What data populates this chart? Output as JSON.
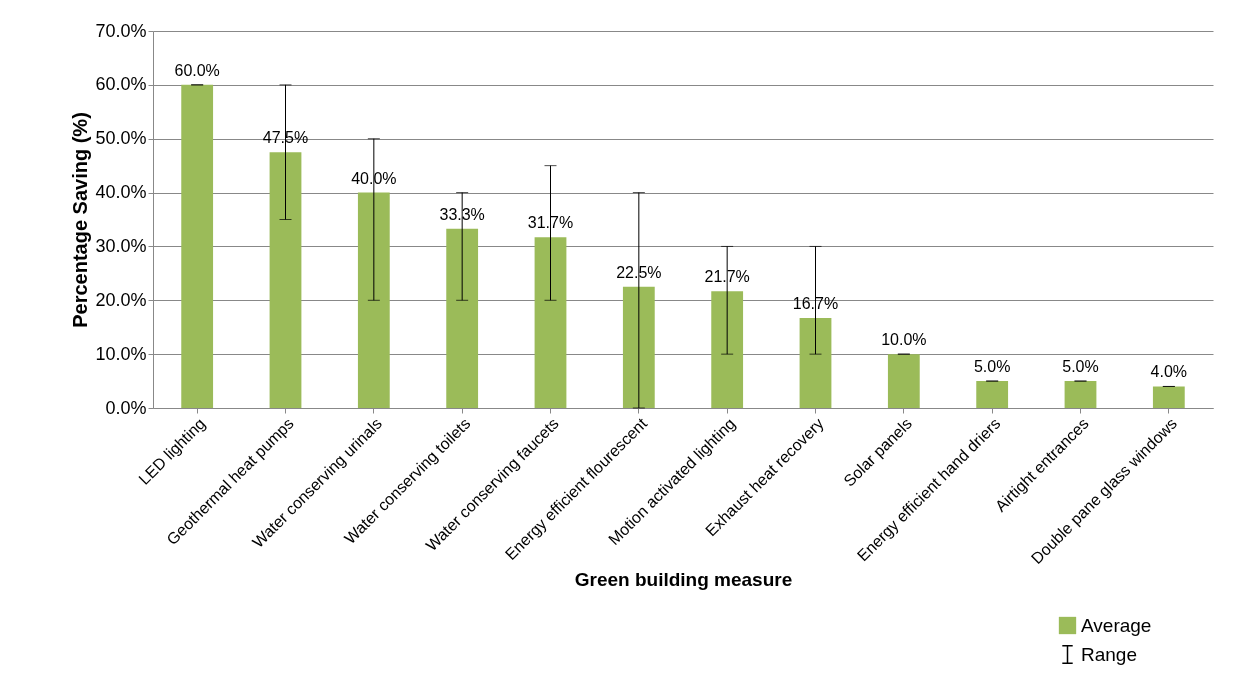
{
  "chart_data": {
    "type": "bar",
    "xlabel": "Green building measure",
    "ylabel": "Percentage Saving (%)",
    "categories": [
      "LED lighting",
      "Geothermal heat pumps",
      "Water conserving urinals",
      "Water conserving toilets",
      "Water conserving faucets",
      "Energy efficient flourescent",
      "Motion activated lighting",
      "Exhaust heat recovery",
      "Solar panels",
      "Energy efficient hand driers",
      "Airtight entrances",
      "Double pane glass windows"
    ],
    "series": [
      {
        "name": "Average",
        "color": "#9bbb59",
        "values": [
          60,
          47.5,
          40,
          33.3,
          31.7,
          22.5,
          21.7,
          16.7,
          10,
          5,
          5,
          4
        ],
        "errors": [
          [
            60,
            60
          ],
          [
            35,
            60
          ],
          [
            20,
            50
          ],
          [
            20,
            40
          ],
          [
            20,
            45
          ],
          [
            0,
            40
          ],
          [
            10,
            30
          ],
          [
            10,
            30
          ],
          [
            10,
            10
          ],
          [
            5,
            5
          ],
          [
            5,
            5
          ],
          [
            4,
            4
          ]
        ],
        "value_labels": [
          "60.0%",
          "47.5%",
          "40.0%",
          "33.3%",
          "31.7%",
          "22.5%",
          "21.7%",
          "16.7%",
          "10.0%",
          "5.0%",
          "5.0%",
          "4.0%"
        ]
      }
    ],
    "ylim": [
      0,
      70
    ],
    "yticks": [
      {
        "value": 0,
        "label": "0.0%"
      },
      {
        "value": 10,
        "label": "10.0%"
      },
      {
        "value": 20,
        "label": "20.0%"
      },
      {
        "value": 30,
        "label": "30.0%"
      },
      {
        "value": 40,
        "label": "40.0%"
      },
      {
        "value": 50,
        "label": "50.0%"
      },
      {
        "value": 60,
        "label": "60.0%"
      },
      {
        "value": 70,
        "label": "70.0%"
      }
    ],
    "grid": "y",
    "legend": "bottom right",
    "annotations": [
      "Range"
    ]
  }
}
